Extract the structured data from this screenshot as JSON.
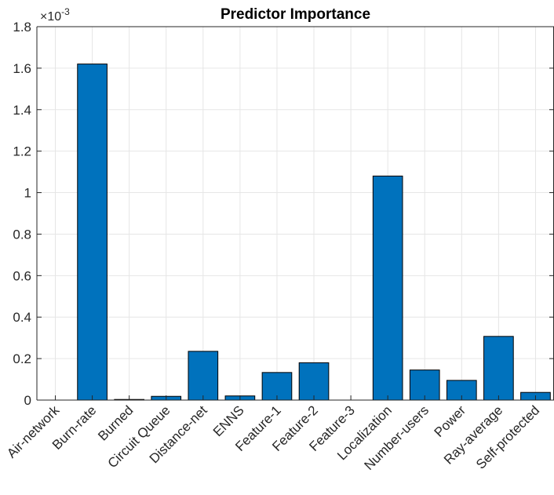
{
  "chart_data": {
    "type": "bar",
    "title": "Predictor Importance",
    "xlabel": "",
    "ylabel": "",
    "categories": [
      "Air-network",
      "Burn-rate",
      "Burned",
      "Circuit Queue",
      "Distance-net",
      "ENNS",
      "Feature-1",
      "Feature-2",
      "Feature-3",
      "Localization",
      "Number-users",
      "Power",
      "Ray-average",
      "Self-protected"
    ],
    "values": [
      0,
      1.62,
      0.003,
      0.018,
      0.235,
      0.02,
      0.133,
      0.18,
      0,
      1.08,
      0.145,
      0.095,
      0.307,
      0.037
    ],
    "ylim": [
      0,
      1.8
    ],
    "yticks": [
      0,
      0.2,
      0.4,
      0.6,
      0.8,
      1,
      1.2,
      1.4,
      1.6,
      1.8
    ],
    "ytick_labels": [
      "0",
      "0.2",
      "0.4",
      "0.6",
      "0.8",
      "1",
      "1.2",
      "1.4",
      "1.6",
      "1.8"
    ],
    "y_exponent_base": "×10",
    "y_exponent_power": "-3",
    "grid": true,
    "bar_color": "#0072BD",
    "bar_edge_color": "#000000"
  }
}
